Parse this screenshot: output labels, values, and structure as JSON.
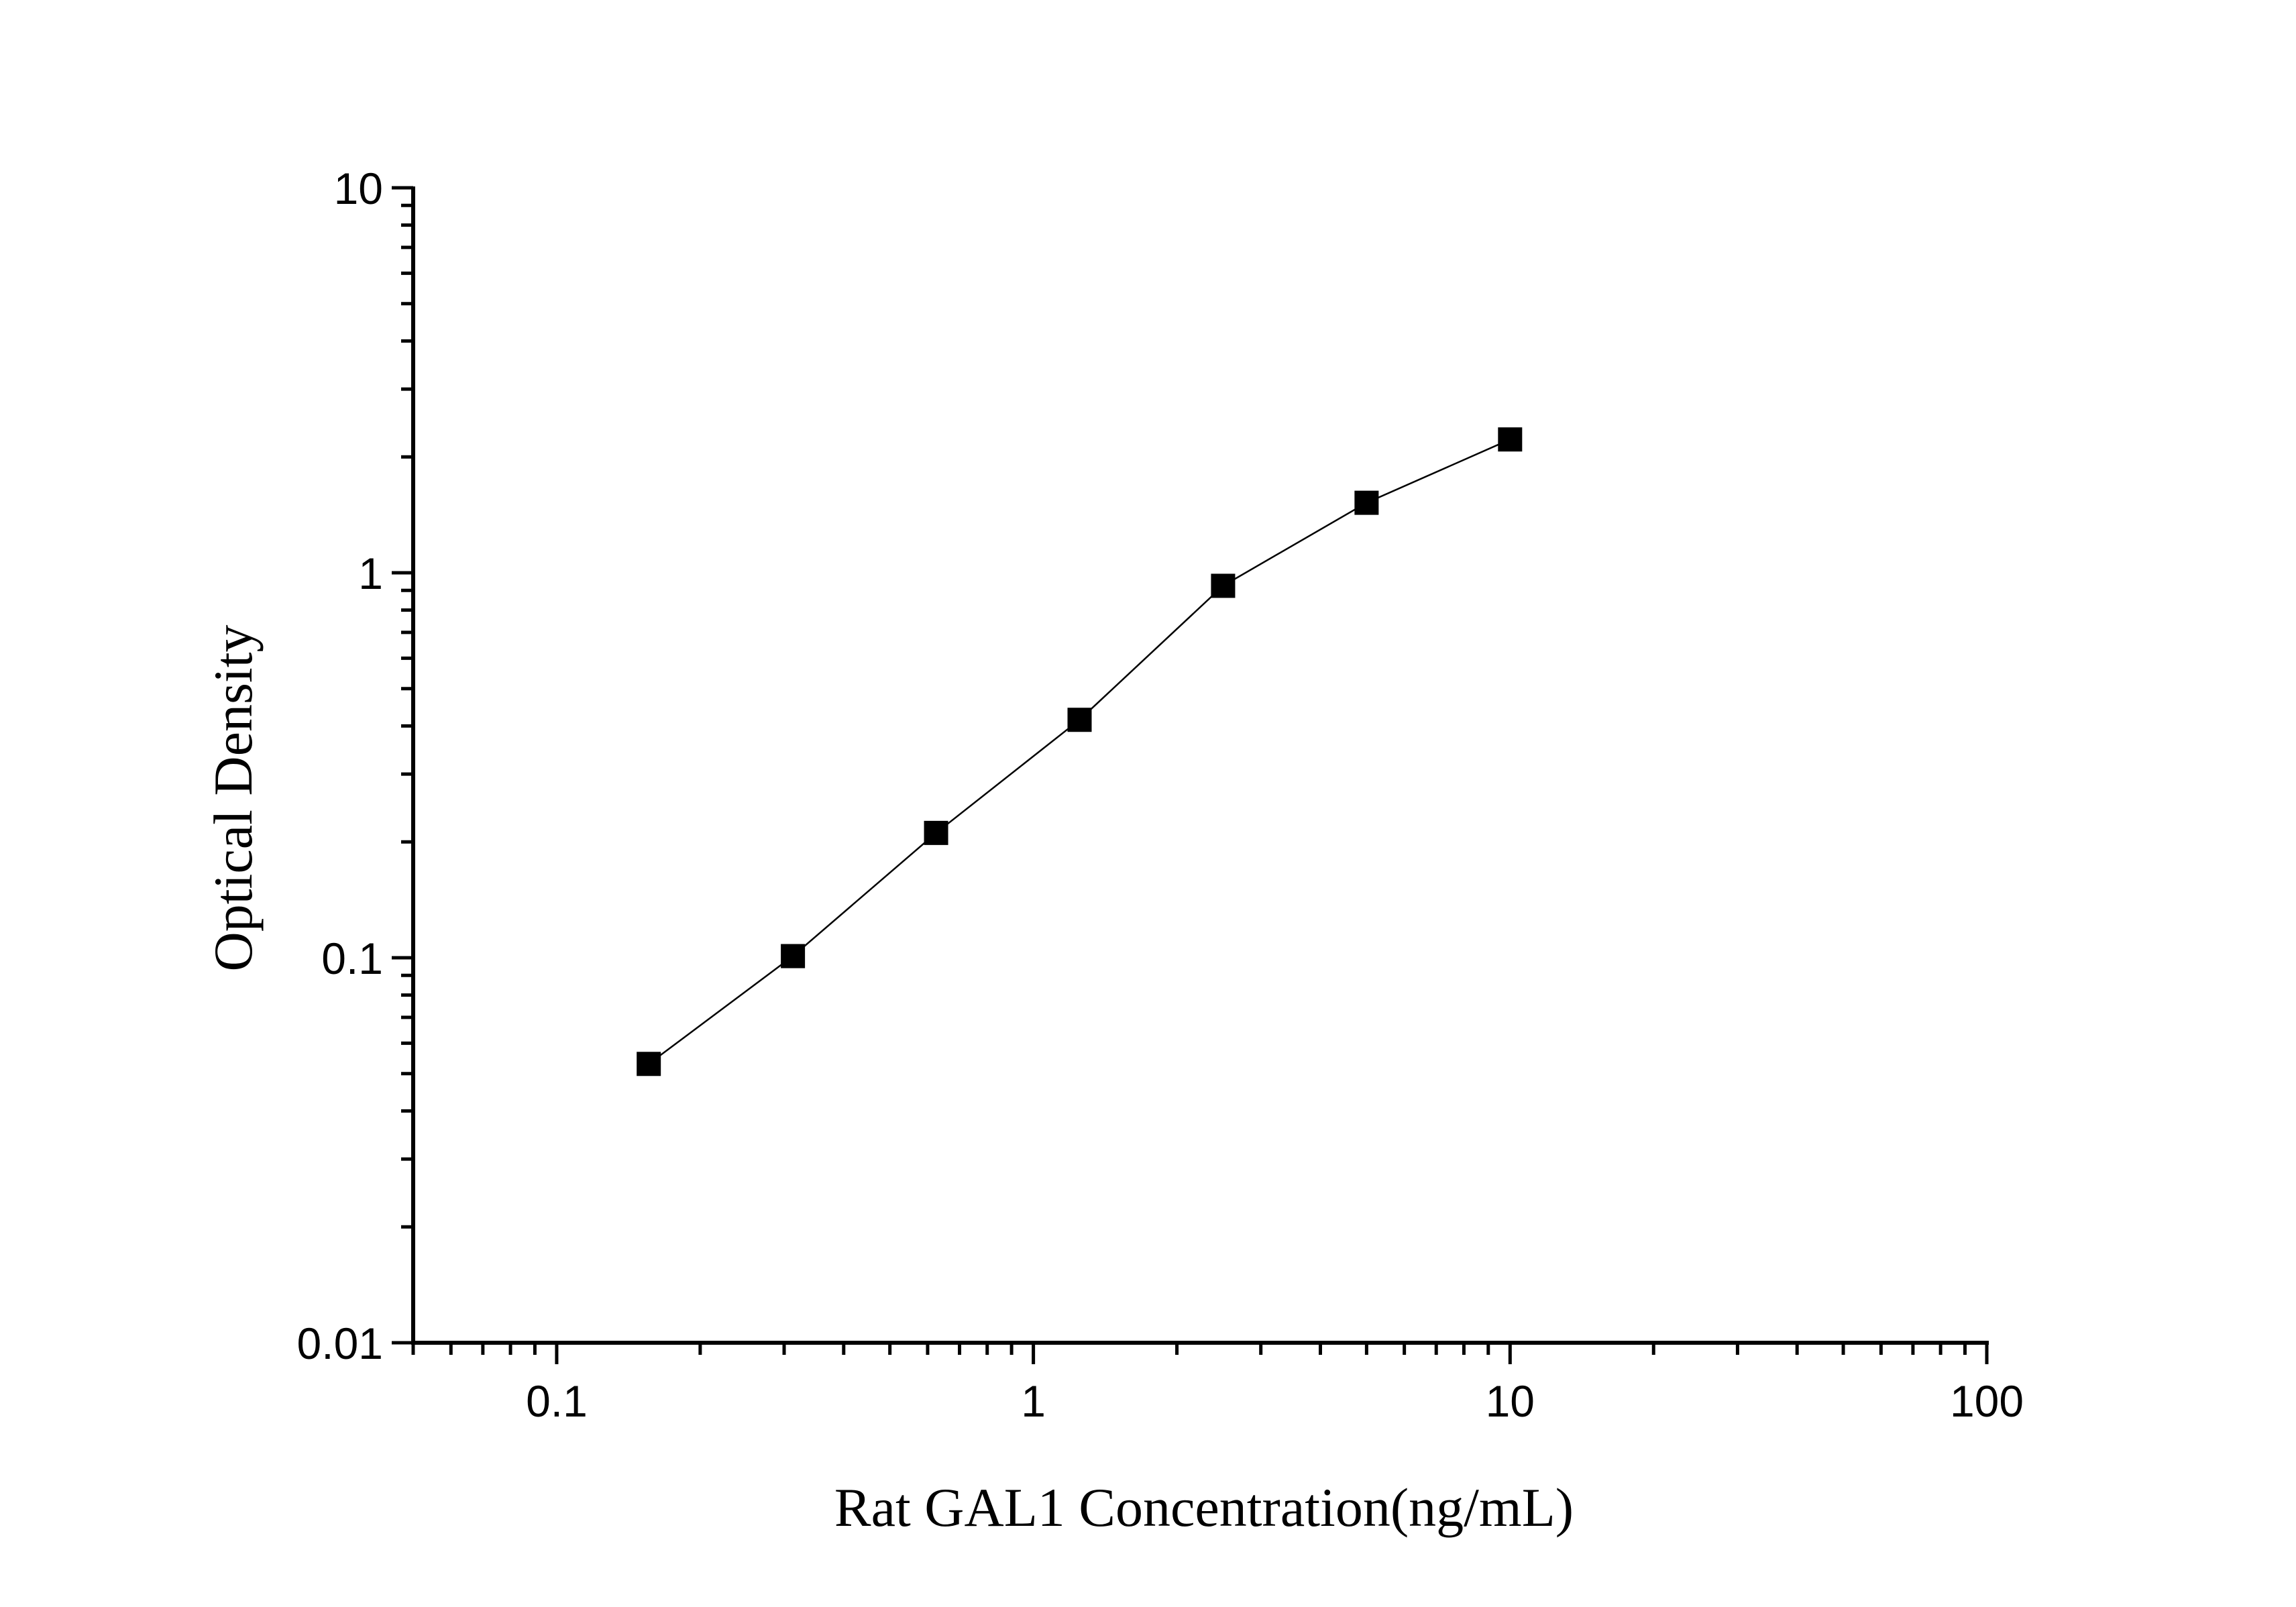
{
  "chart_data": {
    "type": "scatter",
    "x_scale": "log",
    "y_scale": "log",
    "xlabel": "Rat GAL1 Concentration(ng/mL)",
    "ylabel": "Optical Density",
    "xlim": [
      0.05,
      100
    ],
    "ylim": [
      0.01,
      10
    ],
    "x_ticks": [
      0.1,
      1,
      10,
      100
    ],
    "x_tick_labels": [
      "0.1",
      "1",
      "10",
      "100"
    ],
    "y_ticks": [
      0.01,
      0.1,
      1,
      10
    ],
    "y_tick_labels": [
      "0.01",
      "0.1",
      "1",
      "10"
    ],
    "grid": false,
    "legend": false,
    "series": [
      {
        "x": [
          0.156,
          0.313,
          0.625,
          1.25,
          2.5,
          5,
          10
        ],
        "y": [
          0.053,
          0.101,
          0.211,
          0.415,
          0.925,
          1.52,
          2.22
        ],
        "marker": "square",
        "connected": true,
        "color": "#000000"
      }
    ]
  }
}
